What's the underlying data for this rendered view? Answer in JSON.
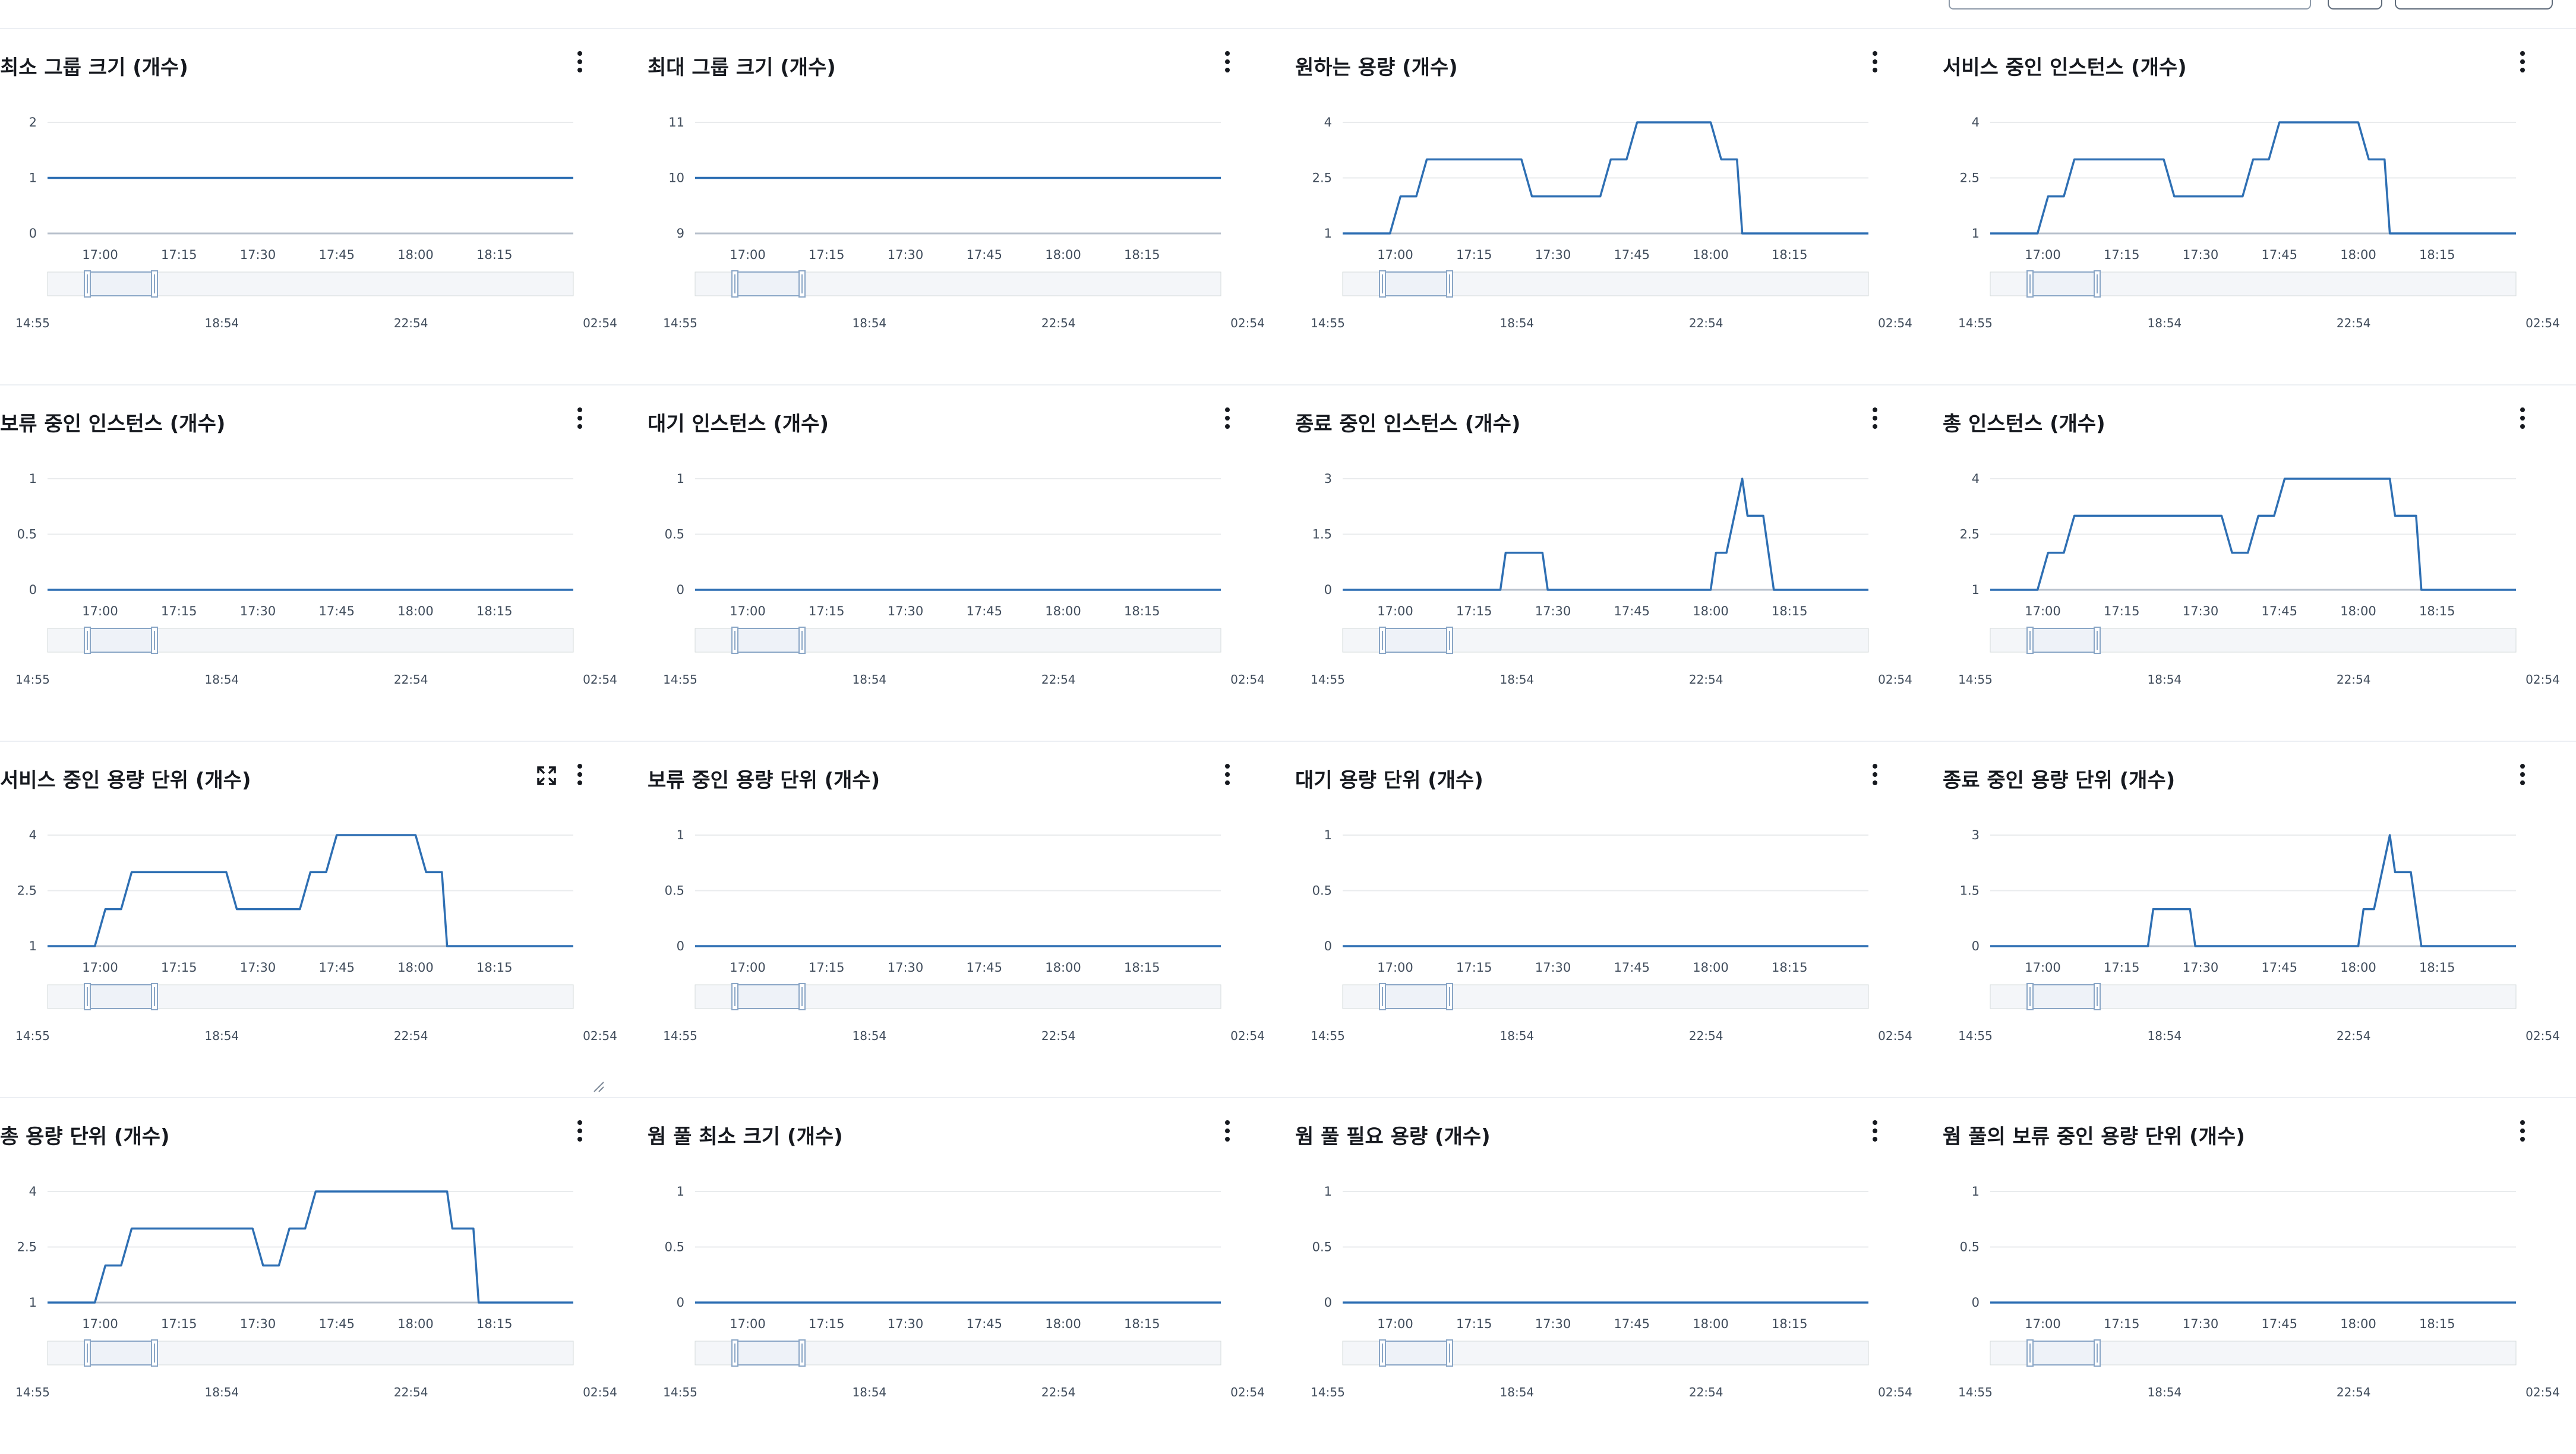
{
  "header": {
    "control_icons": [
      "segmented-control",
      "gear-icon",
      "dropdown-button"
    ]
  },
  "theme": {
    "line_color": "#2e6fb3",
    "axis_color": "#d5dbdb",
    "grid_color": "#e9ebed",
    "navigator_fill": "#eef2f8",
    "navigator_border": "#8aa6c6"
  },
  "widgets": [
    {
      "title": "최소 그룹 크기 (개수)"
    },
    {
      "title": "최대 그룹 크기 (개수)"
    },
    {
      "title": "원하는 용량 (개수)"
    },
    {
      "title": "서비스 중인 인스턴스 (개수)"
    },
    {
      "title": "보류 중인 인스턴스 (개수)"
    },
    {
      "title": "대기 인스턴스 (개수)"
    },
    {
      "title": "종료 중인 인스턴스 (개수)"
    },
    {
      "title": "총 인스턴스 (개수)"
    },
    {
      "title": "서비스 중인 용량 단위 (개수)"
    },
    {
      "title": "보류 중인 용량 단위 (개수)"
    },
    {
      "title": "대기 용량 단위 (개수)"
    },
    {
      "title": "종료 중인 용량 단위 (개수)"
    },
    {
      "title": "총 용량 단위 (개수)"
    },
    {
      "title": "웜 풀 최소 크기 (개수)"
    },
    {
      "title": "웜 풀 필요 용량 (개수)"
    },
    {
      "title": "웜 풀의 보류 중인 용량 단위 (개수)"
    }
  ],
  "chart_data": [
    {
      "type": "line",
      "title": "최소 그룹 크기 (개수)",
      "x_ticks": [
        "17:00",
        "17:15",
        "17:30",
        "17:45",
        "18:00",
        "18:15"
      ],
      "y_ticks": [
        "0",
        "1",
        "2"
      ],
      "ylim": [
        0,
        2
      ],
      "x": [
        "16:50",
        "18:30"
      ],
      "series": [
        {
          "values": [
            1,
            1
          ]
        }
      ],
      "navigator": {
        "ticks": [
          "14:55",
          "18:54",
          "22:54",
          "02:54"
        ]
      }
    },
    {
      "type": "line",
      "title": "최대 그룹 크기 (개수)",
      "x_ticks": [
        "17:00",
        "17:15",
        "17:30",
        "17:45",
        "18:00",
        "18:15"
      ],
      "y_ticks": [
        "9",
        "10",
        "11"
      ],
      "ylim": [
        9,
        11
      ],
      "x": [
        "16:50",
        "18:30"
      ],
      "series": [
        {
          "values": [
            10,
            10
          ]
        }
      ],
      "navigator": {
        "ticks": [
          "14:55",
          "18:54",
          "22:54",
          "02:54"
        ]
      }
    },
    {
      "type": "line",
      "title": "원하는 용량 (개수)",
      "x_ticks": [
        "17:00",
        "17:15",
        "17:30",
        "17:45",
        "18:00",
        "18:15"
      ],
      "y_ticks": [
        "1",
        "2.5",
        "4"
      ],
      "ylim": [
        1,
        4
      ],
      "x": [
        "16:50",
        "16:59",
        "17:01",
        "17:04",
        "17:06",
        "17:24",
        "17:26",
        "17:39",
        "17:41",
        "17:44",
        "17:46",
        "18:00",
        "18:02",
        "18:05",
        "18:06",
        "18:30"
      ],
      "series": [
        {
          "values": [
            1,
            1,
            2,
            2,
            3,
            3,
            2,
            2,
            3,
            3,
            4,
            4,
            3,
            3,
            1,
            1
          ]
        }
      ],
      "navigator": {
        "ticks": [
          "14:55",
          "18:54",
          "22:54",
          "02:54"
        ]
      }
    },
    {
      "type": "line",
      "title": "서비스 중인 인스턴스 (개수)",
      "x_ticks": [
        "17:00",
        "17:15",
        "17:30",
        "17:45",
        "18:00",
        "18:15"
      ],
      "y_ticks": [
        "1",
        "2.5",
        "4"
      ],
      "ylim": [
        1,
        4
      ],
      "x": [
        "16:50",
        "16:59",
        "17:01",
        "17:04",
        "17:06",
        "17:23",
        "17:25",
        "17:38",
        "17:40",
        "17:43",
        "17:45",
        "18:00",
        "18:02",
        "18:05",
        "18:06",
        "18:30"
      ],
      "series": [
        {
          "values": [
            1,
            1,
            2,
            2,
            3,
            3,
            2,
            2,
            3,
            3,
            4,
            4,
            3,
            3,
            1,
            1
          ]
        }
      ],
      "navigator": {
        "ticks": [
          "14:55",
          "18:54",
          "22:54",
          "02:54"
        ]
      }
    },
    {
      "type": "line",
      "title": "보류 중인 인스턴스 (개수)",
      "x_ticks": [
        "17:00",
        "17:15",
        "17:30",
        "17:45",
        "18:00",
        "18:15"
      ],
      "y_ticks": [
        "0",
        "0.5",
        "1"
      ],
      "ylim": [
        0,
        1
      ],
      "x": [
        "16:50",
        "18:30"
      ],
      "series": [
        {
          "values": [
            0,
            0
          ]
        }
      ],
      "navigator": {
        "ticks": [
          "14:55",
          "18:54",
          "22:54",
          "02:54"
        ]
      }
    },
    {
      "type": "line",
      "title": "대기 인스턴스 (개수)",
      "x_ticks": [
        "17:00",
        "17:15",
        "17:30",
        "17:45",
        "18:00",
        "18:15"
      ],
      "y_ticks": [
        "0",
        "0.5",
        "1"
      ],
      "ylim": [
        0,
        1
      ],
      "x": [
        "16:50",
        "18:30"
      ],
      "series": [
        {
          "values": [
            0,
            0
          ]
        }
      ],
      "navigator": {
        "ticks": [
          "14:55",
          "18:54",
          "22:54",
          "02:54"
        ]
      }
    },
    {
      "type": "line",
      "title": "종료 중인 인스턴스 (개수)",
      "x_ticks": [
        "17:00",
        "17:15",
        "17:30",
        "17:45",
        "18:00",
        "18:15"
      ],
      "y_ticks": [
        "0",
        "1.5",
        "3"
      ],
      "ylim": [
        0,
        3
      ],
      "x": [
        "16:50",
        "17:20",
        "17:21",
        "17:28",
        "17:29",
        "18:00",
        "18:01",
        "18:03",
        "18:06",
        "18:07",
        "18:10",
        "18:12",
        "18:30"
      ],
      "series": [
        {
          "values": [
            0,
            0,
            1,
            1,
            0,
            0,
            1,
            1,
            3,
            2,
            2,
            0,
            0
          ]
        }
      ],
      "navigator": {
        "ticks": [
          "14:55",
          "18:54",
          "22:54",
          "02:54"
        ]
      }
    },
    {
      "type": "line",
      "title": "총 인스턴스 (개수)",
      "x_ticks": [
        "17:00",
        "17:15",
        "17:30",
        "17:45",
        "18:00",
        "18:15"
      ],
      "y_ticks": [
        "1",
        "2.5",
        "4"
      ],
      "ylim": [
        1,
        4
      ],
      "x": [
        "16:50",
        "16:59",
        "17:01",
        "17:04",
        "17:06",
        "17:34",
        "17:36",
        "17:39",
        "17:41",
        "17:44",
        "17:46",
        "18:06",
        "18:07",
        "18:11",
        "18:12",
        "18:30"
      ],
      "series": [
        {
          "values": [
            1,
            1,
            2,
            2,
            3,
            3,
            2,
            2,
            3,
            3,
            4,
            4,
            3,
            3,
            1,
            1
          ]
        }
      ],
      "navigator": {
        "ticks": [
          "14:55",
          "18:54",
          "22:54",
          "02:54"
        ]
      }
    },
    {
      "type": "line",
      "title": "서비스 중인 용량 단위 (개수)",
      "x_ticks": [
        "17:00",
        "17:15",
        "17:30",
        "17:45",
        "18:00",
        "18:15"
      ],
      "y_ticks": [
        "1",
        "2.5",
        "4"
      ],
      "ylim": [
        1,
        4
      ],
      "x": [
        "16:50",
        "16:59",
        "17:01",
        "17:04",
        "17:06",
        "17:24",
        "17:26",
        "17:38",
        "17:40",
        "17:43",
        "17:45",
        "18:00",
        "18:02",
        "18:05",
        "18:06",
        "18:30"
      ],
      "series": [
        {
          "values": [
            1,
            1,
            2,
            2,
            3,
            3,
            2,
            2,
            3,
            3,
            4,
            4,
            3,
            3,
            1,
            1
          ]
        }
      ],
      "navigator": {
        "ticks": [
          "14:55",
          "18:54",
          "22:54",
          "02:54"
        ]
      }
    },
    {
      "type": "line",
      "title": "보류 중인 용량 단위 (개수)",
      "x_ticks": [
        "17:00",
        "17:15",
        "17:30",
        "17:45",
        "18:00",
        "18:15"
      ],
      "y_ticks": [
        "0",
        "0.5",
        "1"
      ],
      "ylim": [
        0,
        1
      ],
      "x": [
        "16:50",
        "18:30"
      ],
      "series": [
        {
          "values": [
            0,
            0
          ]
        }
      ],
      "navigator": {
        "ticks": [
          "14:55",
          "18:54",
          "22:54",
          "02:54"
        ]
      }
    },
    {
      "type": "line",
      "title": "대기 용량 단위 (개수)",
      "x_ticks": [
        "17:00",
        "17:15",
        "17:30",
        "17:45",
        "18:00",
        "18:15"
      ],
      "y_ticks": [
        "0",
        "0.5",
        "1"
      ],
      "ylim": [
        0,
        1
      ],
      "x": [
        "16:50",
        "18:30"
      ],
      "series": [
        {
          "values": [
            0,
            0
          ]
        }
      ],
      "navigator": {
        "ticks": [
          "14:55",
          "18:54",
          "22:54",
          "02:54"
        ]
      }
    },
    {
      "type": "line",
      "title": "종료 중인 용량 단위 (개수)",
      "x_ticks": [
        "17:00",
        "17:15",
        "17:30",
        "17:45",
        "18:00",
        "18:15"
      ],
      "y_ticks": [
        "0",
        "1.5",
        "3"
      ],
      "ylim": [
        0,
        3
      ],
      "x": [
        "16:50",
        "17:20",
        "17:21",
        "17:28",
        "17:29",
        "18:00",
        "18:01",
        "18:03",
        "18:06",
        "18:07",
        "18:10",
        "18:12",
        "18:30"
      ],
      "series": [
        {
          "values": [
            0,
            0,
            1,
            1,
            0,
            0,
            1,
            1,
            3,
            2,
            2,
            0,
            0
          ]
        }
      ],
      "navigator": {
        "ticks": [
          "14:55",
          "18:54",
          "22:54",
          "02:54"
        ]
      }
    },
    {
      "type": "line",
      "title": "총 용량 단위 (개수)",
      "x_ticks": [
        "17:00",
        "17:15",
        "17:30",
        "17:45",
        "18:00",
        "18:15"
      ],
      "y_ticks": [
        "1",
        "2.5",
        "4"
      ],
      "ylim": [
        1,
        4
      ],
      "x": [
        "16:50",
        "16:59",
        "17:01",
        "17:04",
        "17:06",
        "17:29",
        "17:31",
        "17:34",
        "17:36",
        "17:39",
        "17:41",
        "18:06",
        "18:07",
        "18:11",
        "18:12",
        "18:30"
      ],
      "series": [
        {
          "values": [
            1,
            1,
            2,
            2,
            3,
            3,
            2,
            2,
            3,
            3,
            4,
            4,
            3,
            3,
            1,
            1
          ]
        }
      ],
      "navigator": {
        "ticks": [
          "14:55",
          "18:54",
          "22:54",
          "02:54"
        ]
      }
    },
    {
      "type": "line",
      "title": "웜 풀 최소 크기 (개수)",
      "x_ticks": [
        "17:00",
        "17:15",
        "17:30",
        "17:45",
        "18:00",
        "18:15"
      ],
      "y_ticks": [
        "0",
        "0.5",
        "1"
      ],
      "ylim": [
        0,
        1
      ],
      "x": [
        "16:50",
        "18:30"
      ],
      "series": [
        {
          "values": [
            0,
            0
          ]
        }
      ],
      "navigator": {
        "ticks": [
          "14:55",
          "18:54",
          "22:54",
          "02:54"
        ]
      }
    },
    {
      "type": "line",
      "title": "웜 풀 필요 용량 (개수)",
      "x_ticks": [
        "17:00",
        "17:15",
        "17:30",
        "17:45",
        "18:00",
        "18:15"
      ],
      "y_ticks": [
        "0",
        "0.5",
        "1"
      ],
      "ylim": [
        0,
        1
      ],
      "x": [
        "16:50",
        "18:30"
      ],
      "series": [
        {
          "values": [
            0,
            0
          ]
        }
      ],
      "navigator": {
        "ticks": [
          "14:55",
          "18:54",
          "22:54",
          "02:54"
        ]
      }
    },
    {
      "type": "line",
      "title": "웜 풀의 보류 중인 용량 단위 (개수)",
      "x_ticks": [
        "17:00",
        "17:15",
        "17:30",
        "17:45",
        "18:00",
        "18:15"
      ],
      "y_ticks": [
        "0",
        "0.5",
        "1"
      ],
      "ylim": [
        0,
        1
      ],
      "x": [
        "16:50",
        "18:30"
      ],
      "series": [
        {
          "values": [
            0,
            0
          ]
        }
      ],
      "navigator": {
        "ticks": [
          "14:55",
          "18:54",
          "22:54",
          "02:54"
        ]
      }
    }
  ]
}
